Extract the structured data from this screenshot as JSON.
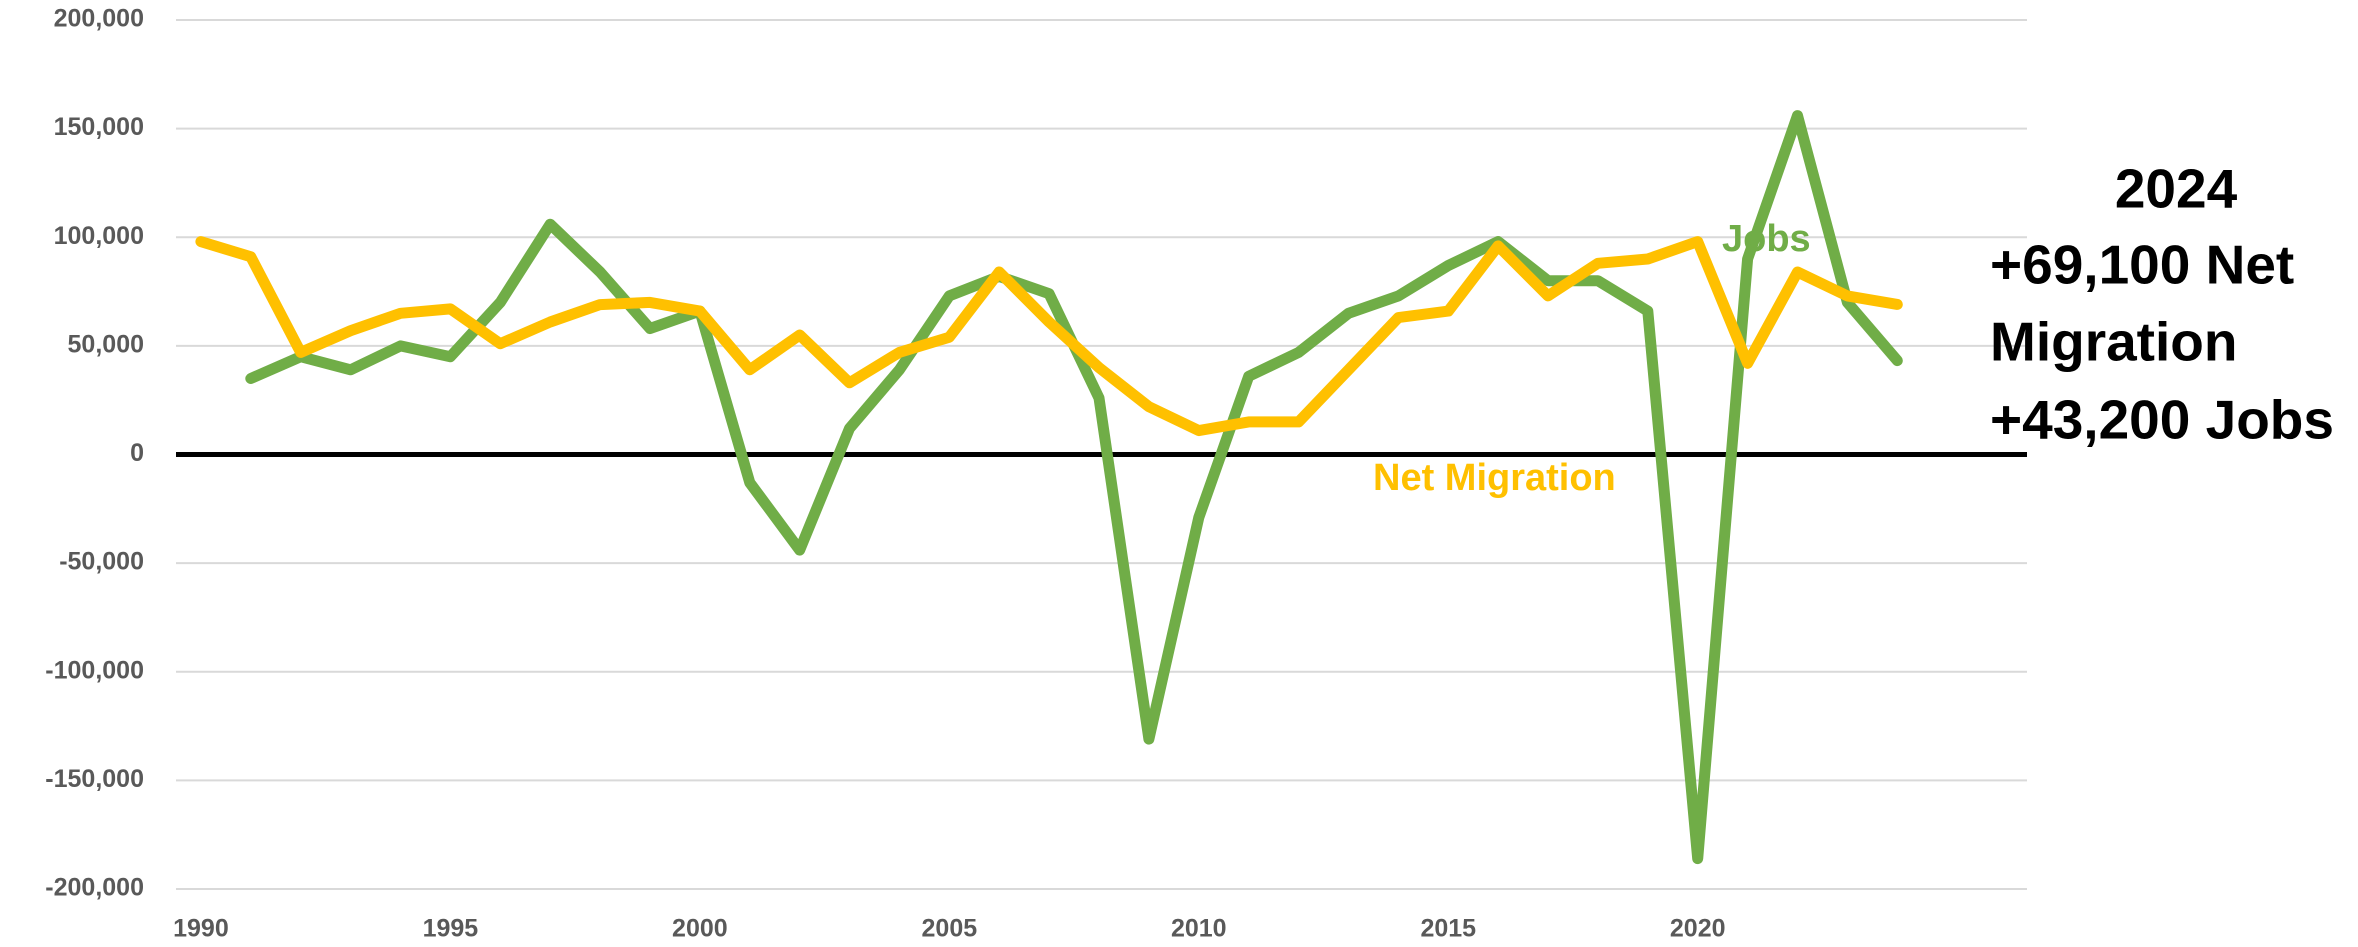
{
  "chart_data": {
    "type": "line",
    "x": [
      1990,
      1991,
      1992,
      1993,
      1994,
      1995,
      1996,
      1997,
      1998,
      1999,
      2000,
      2001,
      2002,
      2003,
      2004,
      2005,
      2006,
      2007,
      2008,
      2009,
      2010,
      2011,
      2012,
      2013,
      2014,
      2015,
      2016,
      2017,
      2018,
      2019,
      2020,
      2021,
      2022,
      2023,
      2024
    ],
    "series": [
      {
        "name": "Jobs",
        "color": "#70ad47",
        "values": [
          null,
          35000,
          45000,
          39000,
          50000,
          45000,
          70000,
          106000,
          84000,
          58000,
          66000,
          -13000,
          -44000,
          12000,
          39000,
          73000,
          82000,
          74000,
          26000,
          -131000,
          -29000,
          36000,
          47000,
          65000,
          73000,
          87000,
          98000,
          80000,
          80000,
          66000,
          -186000,
          90000,
          156000,
          70000,
          43200
        ]
      },
      {
        "name": "Net Migration",
        "color": "#ffc000",
        "values": [
          98000,
          91000,
          47000,
          57000,
          65000,
          67000,
          51000,
          61000,
          69000,
          70000,
          66000,
          39000,
          55000,
          33000,
          47000,
          54000,
          84000,
          61000,
          40000,
          22000,
          11000,
          15000,
          15000,
          39000,
          63000,
          66000,
          96000,
          73000,
          88000,
          90000,
          98000,
          42000,
          84000,
          73000,
          69100
        ]
      }
    ],
    "xlim": [
      1989.5,
      2026.6
    ],
    "xticks": [
      1990,
      1995,
      2000,
      2005,
      2010,
      2015,
      2020
    ],
    "ylim": [
      -200000,
      200000
    ],
    "yticks": [
      {
        "value": -200000,
        "label": "-200,000"
      },
      {
        "value": -150000,
        "label": "-150,000"
      },
      {
        "value": -100000,
        "label": "-100,000"
      },
      {
        "value": -50000,
        "label": "-50,000"
      },
      0,
      {
        "value": 50000,
        "label": "50,000"
      },
      {
        "value": 100000,
        "label": "100,000"
      },
      {
        "value": 150000,
        "label": "150,000"
      },
      {
        "value": 200000,
        "label": "200,000"
      }
    ],
    "grid": true,
    "annotations": [
      "2024",
      "+69,100 Net",
      "Migration",
      "+43,200 Jobs"
    ]
  }
}
